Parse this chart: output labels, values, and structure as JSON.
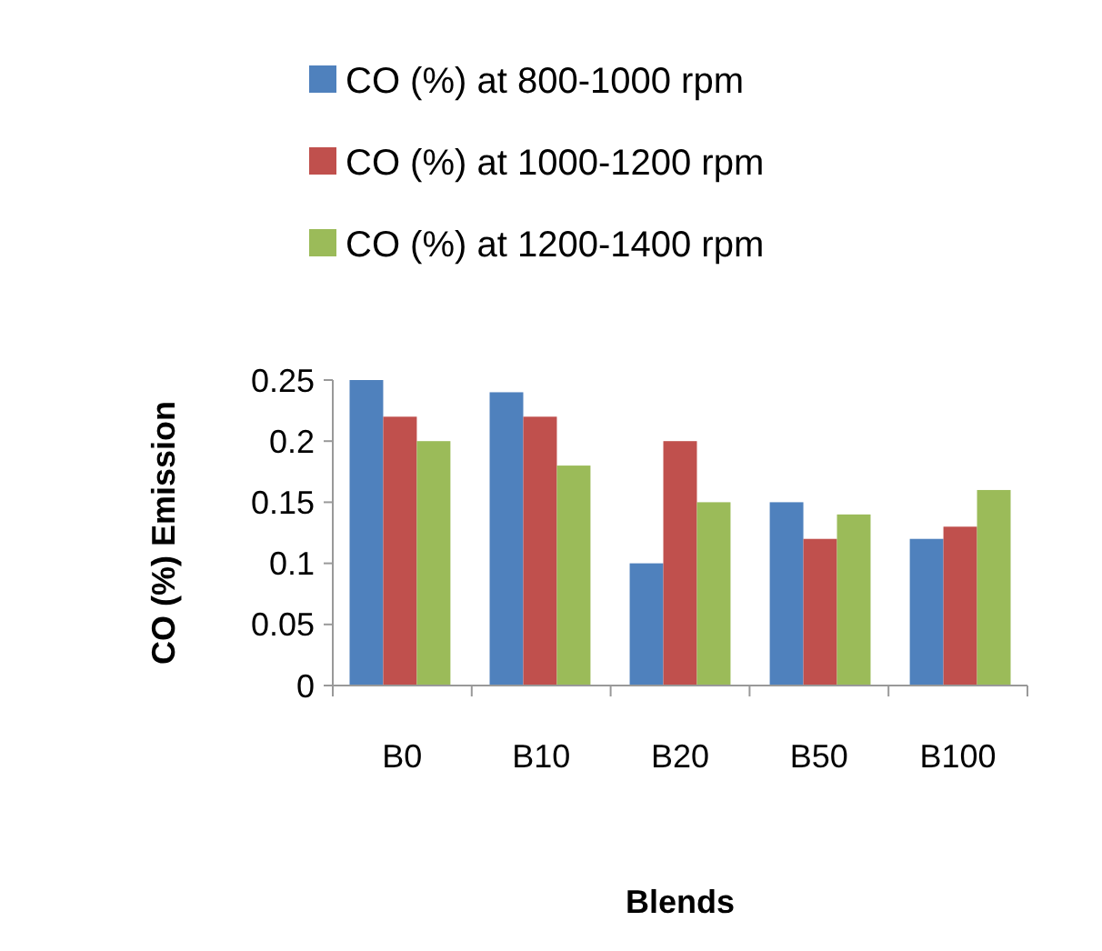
{
  "chart_data": {
    "type": "bar",
    "xlabel": "Blends",
    "ylabel": "CO (%) Emission",
    "categories": [
      "B0",
      "B10",
      "B20",
      "B50",
      "B100"
    ],
    "series": [
      {
        "name": "CO (%) at 800-1000 rpm",
        "color": "#4f81bd",
        "values": [
          0.25,
          0.24,
          0.1,
          0.15,
          0.12
        ]
      },
      {
        "name": "CO (%) at 1000-1200 rpm",
        "color": "#c0504d",
        "values": [
          0.22,
          0.22,
          0.2,
          0.12,
          0.13
        ]
      },
      {
        "name": "CO (%) at 1200-1400 rpm",
        "color": "#9bbb59",
        "values": [
          0.2,
          0.18,
          0.15,
          0.14,
          0.16
        ]
      }
    ],
    "ylim": [
      0,
      0.25
    ],
    "yticks": [
      0,
      0.05,
      0.1,
      0.15,
      0.2,
      0.25
    ],
    "grid": false,
    "legend": "top"
  }
}
